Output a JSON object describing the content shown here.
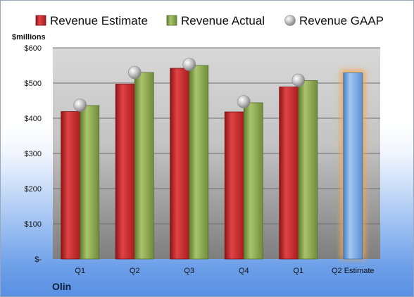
{
  "chart_data": {
    "type": "bar",
    "ylabel": "$millions",
    "footer": "Olin",
    "categories": [
      "Q1",
      "Q2",
      "Q3",
      "Q4",
      "Q1",
      "Q2 Estimate"
    ],
    "ylim": [
      0,
      600
    ],
    "yticks": [
      0,
      100,
      200,
      300,
      400,
      500,
      600
    ],
    "ytick_labels": [
      "$-",
      "$100",
      "$200",
      "$300",
      "$400",
      "$500",
      "$600"
    ],
    "grid": true,
    "legend_position": "top",
    "series": [
      {
        "name": "Revenue Estimate",
        "kind": "bar",
        "color": "#c8282a",
        "values": [
          419,
          497,
          542,
          418,
          489,
          null
        ]
      },
      {
        "name": "Revenue Actual",
        "kind": "bar",
        "color": "#8fac55",
        "values": [
          436,
          530,
          550,
          444,
          507,
          null
        ]
      },
      {
        "name": "Revenue GAAP",
        "kind": "marker",
        "color": "#b9b9b9",
        "values": [
          437,
          530,
          553,
          447,
          508,
          null
        ]
      },
      {
        "name": "Q2 Estimate",
        "kind": "bar",
        "color": "#6f9fdc",
        "values": [
          null,
          null,
          null,
          null,
          null,
          529
        ],
        "highlight": "#f5a64a"
      }
    ]
  }
}
